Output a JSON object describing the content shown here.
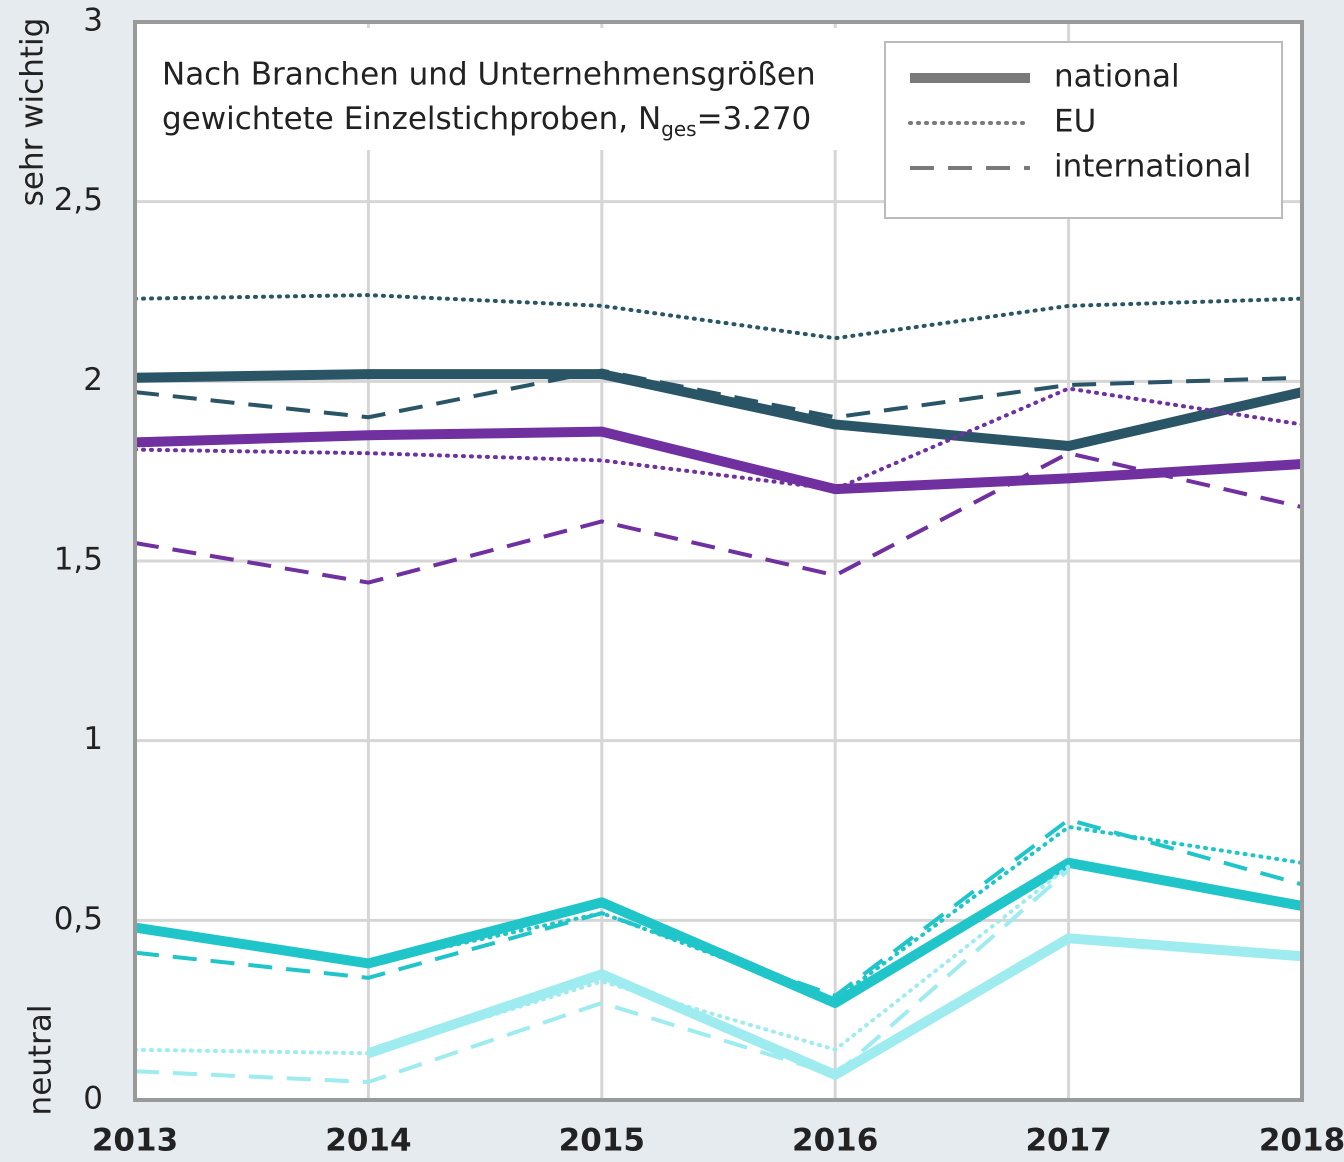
{
  "chart_data": {
    "type": "line",
    "annotation": [
      "Nach Branchen und Unternehmensgrößen",
      "gewichtete Einzelstichproben, N",
      "ges",
      "=3.270"
    ],
    "y_top_label": "sehr wichtig",
    "y_bottom_label": "neutral",
    "categories": [
      "2013",
      "2014",
      "2015",
      "2016",
      "2017",
      "2018"
    ],
    "ylim": [
      0,
      3
    ],
    "yticks": [
      0,
      {
        "value": 0.5,
        "label": "0,5"
      },
      1,
      {
        "value": 1.5,
        "label": "1,5"
      },
      2,
      {
        "value": 2.5,
        "label": "2,5"
      },
      3
    ],
    "grid": true,
    "legend": [
      {
        "label": "national",
        "style": "solid"
      },
      {
        "label": "EU",
        "style": "dotted"
      },
      {
        "label": "international",
        "style": "dashed"
      }
    ],
    "legend_position": "upper right",
    "series": [
      {
        "style": "solid",
        "color": "#2a5566",
        "values": [
          2.01,
          2.02,
          2.02,
          1.88,
          1.82,
          1.97
        ]
      },
      {
        "style": "dotted",
        "color": "#2a5566",
        "values": [
          2.23,
          2.24,
          2.21,
          2.12,
          2.21,
          2.23
        ]
      },
      {
        "style": "dashed",
        "color": "#2a5566",
        "values": [
          1.97,
          1.9,
          2.03,
          1.9,
          1.99,
          2.01
        ]
      },
      {
        "style": "solid",
        "color": "#7030a0",
        "values": [
          1.83,
          1.85,
          1.86,
          1.7,
          1.73,
          1.77
        ]
      },
      {
        "style": "dotted",
        "color": "#7030a0",
        "values": [
          1.81,
          1.8,
          1.78,
          1.7,
          1.98,
          1.88
        ]
      },
      {
        "style": "dashed",
        "color": "#7030a0",
        "values": [
          1.55,
          1.44,
          1.61,
          1.46,
          1.8,
          1.65
        ]
      },
      {
        "style": "solid",
        "color": "#20c5c9",
        "values": [
          0.48,
          0.38,
          0.55,
          0.27,
          0.66,
          0.54
        ]
      },
      {
        "style": "dotted",
        "color": "#20c5c9",
        "values": [
          0.48,
          0.38,
          0.52,
          0.28,
          0.76,
          0.66
        ]
      },
      {
        "style": "dashed",
        "color": "#20c5c9",
        "values": [
          0.41,
          0.34,
          0.52,
          0.29,
          0.78,
          0.6
        ]
      },
      {
        "style": "solid",
        "color": "#9eecf0",
        "values": [
          null,
          0.13,
          0.35,
          0.07,
          0.45,
          0.4
        ]
      },
      {
        "style": "dotted",
        "color": "#9eecf0",
        "values": [
          0.14,
          0.13,
          0.33,
          0.14,
          0.65,
          null
        ]
      },
      {
        "style": "dashed",
        "color": "#9eecf0",
        "values": [
          0.08,
          0.05,
          0.27,
          0.07,
          0.64,
          null
        ]
      }
    ]
  }
}
